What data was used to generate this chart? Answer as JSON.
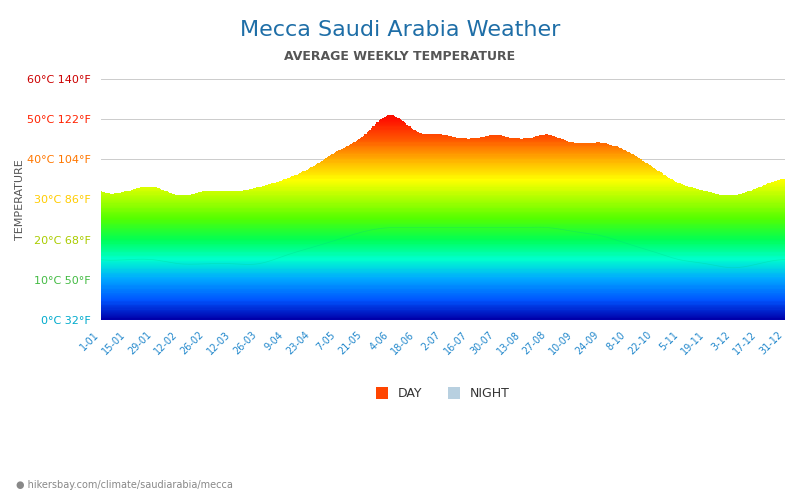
{
  "title": "Mecca Saudi Arabia Weather",
  "subtitle": "AVERAGE WEEKLY TEMPERATURE",
  "ylabel": "TEMPERATURE",
  "xlabel_labels": [
    "1-01",
    "15-01",
    "29-01",
    "12-02",
    "26-02",
    "12-03",
    "26-03",
    "9-04",
    "23-04",
    "7-05",
    "21-05",
    "4-06",
    "18-06",
    "2-07",
    "16-07",
    "30-07",
    "13-08",
    "27-08",
    "10-09",
    "24-09",
    "8-10",
    "22-10",
    "5-11",
    "19-11",
    "3-12",
    "17-12",
    "31-12"
  ],
  "ytick_labels_celsius": [
    "0°C 32°F",
    "10°C 50°F",
    "20°C 68°F",
    "30°C 86°F",
    "40°C 104°F",
    "50°C 122°F",
    "60°C 140°F"
  ],
  "ytick_values": [
    0,
    10,
    20,
    30,
    40,
    50,
    60
  ],
  "ymin": 0,
  "ymax": 60,
  "watermark": "hikersbay.com/climate/saudiarabia/mecca",
  "day_color": "#FF4500",
  "night_color": "#B0C4DE",
  "title_color": "#1E6EA7",
  "subtitle_color": "#555555",
  "day_temps": [
    32,
    32,
    33,
    31,
    32,
    32,
    33,
    35,
    38,
    42,
    46,
    51,
    47,
    46,
    45,
    46,
    45,
    46,
    44,
    44,
    42,
    38,
    34,
    32,
    31,
    33,
    35
  ],
  "night_temps": [
    15,
    15,
    15,
    14,
    14,
    14,
    14,
    16,
    18,
    20,
    22,
    23,
    23,
    23,
    23,
    23,
    23,
    23,
    22,
    21,
    19,
    17,
    15,
    14,
    13,
    14,
    15
  ],
  "bg_color": "#FFFFFF",
  "grid_color": "#CCCCCC"
}
